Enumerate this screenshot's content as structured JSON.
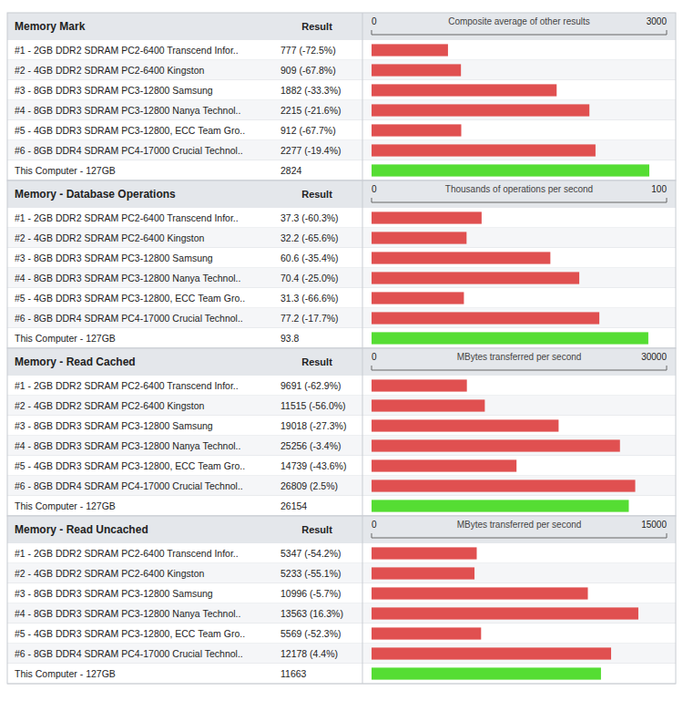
{
  "chart_data": [
    {
      "type": "bar",
      "orientation": "horizontal",
      "title": "Memory Mark",
      "xlabel": "Composite average of other results",
      "annotations": [
        "Result"
      ],
      "categories": [
        "#1 - 2GB DDR2 SDRAM PC2-6400 Transcend Infor..",
        "#2 - 4GB DDR2 SDRAM PC2-6400 Kingston",
        "#3 - 8GB DDR3 SDRAM PC3-12800 Samsung",
        "#4 - 8GB DDR3 SDRAM PC3-12800 Nanya Technol..",
        "#5 - 4GB DDR3 SDRAM PC3-12800, ECC Team Gro..",
        "#6 - 8GB DDR4 SDRAM PC4-17000 Crucial Technol..",
        "This Computer - 127GB"
      ],
      "values": [
        777,
        909,
        1882,
        2215,
        912,
        2277,
        2824
      ],
      "value_labels": [
        "777 (-72.5%)",
        "909 (-67.8%)",
        "1882 (-33.3%)",
        "2215 (-21.6%)",
        "912 (-67.7%)",
        "2277 (-19.4%)",
        "2824"
      ],
      "data_labels": true,
      "colors": [
        "#e05050",
        "#e05050",
        "#e05050",
        "#e05050",
        "#e05050",
        "#e05050",
        "#55dd33"
      ],
      "xlim": [
        0,
        3000
      ],
      "xticks": [
        0,
        3000
      ],
      "grid": false
    },
    {
      "type": "bar",
      "orientation": "horizontal",
      "title": "Memory - Database Operations",
      "xlabel": "Thousands of operations per second",
      "annotations": [
        "Result"
      ],
      "categories": [
        "#1 - 2GB DDR2 SDRAM PC2-6400 Transcend Infor..",
        "#2 - 4GB DDR2 SDRAM PC2-6400 Kingston",
        "#3 - 8GB DDR3 SDRAM PC3-12800 Samsung",
        "#4 - 8GB DDR3 SDRAM PC3-12800 Nanya Technol..",
        "#5 - 4GB DDR3 SDRAM PC3-12800, ECC Team Gro..",
        "#6 - 8GB DDR4 SDRAM PC4-17000 Crucial Technol..",
        "This Computer - 127GB"
      ],
      "values": [
        37.3,
        32.2,
        60.6,
        70.4,
        31.3,
        77.2,
        93.8
      ],
      "value_labels": [
        "37.3 (-60.3%)",
        "32.2 (-65.6%)",
        "60.6 (-35.4%)",
        "70.4 (-25.0%)",
        "31.3 (-66.6%)",
        "77.2 (-17.7%)",
        "93.8"
      ],
      "data_labels": true,
      "colors": [
        "#e05050",
        "#e05050",
        "#e05050",
        "#e05050",
        "#e05050",
        "#e05050",
        "#55dd33"
      ],
      "xlim": [
        0,
        100
      ],
      "xticks": [
        0,
        100
      ],
      "grid": false
    },
    {
      "type": "bar",
      "orientation": "horizontal",
      "title": "Memory - Read Cached",
      "xlabel": "MBytes transferred per second",
      "annotations": [
        "Result"
      ],
      "categories": [
        "#1 - 2GB DDR2 SDRAM PC2-6400 Transcend Infor..",
        "#2 - 4GB DDR2 SDRAM PC2-6400 Kingston",
        "#3 - 8GB DDR3 SDRAM PC3-12800 Samsung",
        "#4 - 8GB DDR3 SDRAM PC3-12800 Nanya Technol..",
        "#5 - 4GB DDR3 SDRAM PC3-12800, ECC Team Gro..",
        "#6 - 8GB DDR4 SDRAM PC4-17000 Crucial Technol..",
        "This Computer - 127GB"
      ],
      "values": [
        9691,
        11515,
        19018,
        25256,
        14739,
        26809,
        26154
      ],
      "value_labels": [
        "9691 (-62.9%)",
        "11515 (-56.0%)",
        "19018 (-27.3%)",
        "25256 (-3.4%)",
        "14739 (-43.6%)",
        "26809 (2.5%)",
        "26154"
      ],
      "data_labels": true,
      "colors": [
        "#e05050",
        "#e05050",
        "#e05050",
        "#e05050",
        "#e05050",
        "#e05050",
        "#55dd33"
      ],
      "xlim": [
        0,
        30000
      ],
      "xticks": [
        0,
        30000
      ],
      "grid": false
    },
    {
      "type": "bar",
      "orientation": "horizontal",
      "title": "Memory - Read Uncached",
      "xlabel": "MBytes transferred per second",
      "annotations": [
        "Result"
      ],
      "categories": [
        "#1 - 2GB DDR2 SDRAM PC2-6400 Transcend Infor..",
        "#2 - 4GB DDR2 SDRAM PC2-6400 Kingston",
        "#3 - 8GB DDR3 SDRAM PC3-12800 Samsung",
        "#4 - 8GB DDR3 SDRAM PC3-12800 Nanya Technol..",
        "#5 - 4GB DDR3 SDRAM PC3-12800, ECC Team Gro..",
        "#6 - 8GB DDR4 SDRAM PC4-17000 Crucial Technol..",
        "This Computer - 127GB"
      ],
      "values": [
        5347,
        5233,
        10996,
        13563,
        5569,
        12178,
        11663
      ],
      "value_labels": [
        "5347 (-54.2%)",
        "5233 (-55.1%)",
        "10996 (-5.7%)",
        "13563 (16.3%)",
        "5569 (-52.3%)",
        "12178 (4.4%)",
        "11663"
      ],
      "data_labels": true,
      "colors": [
        "#e05050",
        "#e05050",
        "#e05050",
        "#e05050",
        "#e05050",
        "#e05050",
        "#55dd33"
      ],
      "xlim": [
        0,
        15000
      ],
      "xticks": [
        0,
        15000
      ],
      "grid": false
    }
  ]
}
